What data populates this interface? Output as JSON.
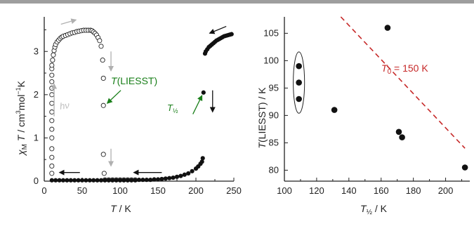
{
  "chart_data": [
    {
      "type": "scatter",
      "xlabel": {
        "main": "T",
        "unit": " / K"
      },
      "ylabel": {
        "base": "χ",
        "sub": "M",
        "mid": "T",
        "unit": " / cm",
        "sup1": "3",
        "unit2": "mol",
        "sup2": "−1",
        "unit3": "K"
      },
      "xlim": [
        0,
        250
      ],
      "ylim": [
        0,
        3.8
      ],
      "x_ticks": [
        0,
        50,
        100,
        150,
        200,
        250
      ],
      "y_ticks": [
        0,
        1,
        2,
        3
      ],
      "series": [
        {
          "marker": "filled-circle",
          "points": [
            [
              10,
              0.02
            ],
            [
              15,
              0.02
            ],
            [
              20,
              0.02
            ],
            [
              25,
              0.02
            ],
            [
              30,
              0.02
            ],
            [
              35,
              0.02
            ],
            [
              40,
              0.02
            ],
            [
              45,
              0.02
            ],
            [
              50,
              0.02
            ],
            [
              55,
              0.02
            ],
            [
              60,
              0.02
            ],
            [
              65,
              0.02
            ],
            [
              70,
              0.02
            ],
            [
              75,
              0.02
            ],
            [
              80,
              0.02
            ],
            [
              85,
              0.02
            ],
            [
              90,
              0.02
            ],
            [
              95,
              0.02
            ],
            [
              100,
              0.02
            ],
            [
              105,
              0.02
            ],
            [
              110,
              0.02
            ],
            [
              115,
              0.02
            ],
            [
              120,
              0.02
            ],
            [
              125,
              0.03
            ],
            [
              130,
              0.03
            ],
            [
              135,
              0.03
            ],
            [
              140,
              0.03
            ],
            [
              145,
              0.04
            ],
            [
              150,
              0.04
            ],
            [
              155,
              0.05
            ],
            [
              160,
              0.06
            ],
            [
              165,
              0.07
            ],
            [
              170,
              0.08
            ],
            [
              175,
              0.1
            ],
            [
              180,
              0.12
            ],
            [
              185,
              0.15
            ],
            [
              190,
              0.18
            ],
            [
              195,
              0.23
            ],
            [
              200,
              0.29
            ],
            [
              203,
              0.34
            ],
            [
              206,
              0.4
            ],
            [
              208,
              0.45
            ],
            [
              209,
              0.53
            ],
            [
              210,
              2.05
            ],
            [
              212,
              2.95
            ],
            [
              213,
              3.0
            ],
            [
              215,
              3.05
            ],
            [
              217,
              3.1
            ],
            [
              219,
              3.13
            ],
            [
              221,
              3.16
            ],
            [
              223,
              3.19
            ],
            [
              225,
              3.22
            ],
            [
              227,
              3.25
            ],
            [
              229,
              3.27
            ],
            [
              231,
              3.29
            ],
            [
              233,
              3.31
            ],
            [
              235,
              3.33
            ],
            [
              237,
              3.35
            ],
            [
              239,
              3.36
            ],
            [
              241,
              3.37
            ],
            [
              243,
              3.38
            ],
            [
              245,
              3.39
            ],
            [
              247,
              3.4
            ]
          ]
        },
        {
          "marker": "open-circle",
          "points": [
            [
              10,
              0.18
            ],
            [
              10,
              0.35
            ],
            [
              10,
              0.55
            ],
            [
              10,
              0.75
            ],
            [
              10,
              1.0
            ],
            [
              10,
              1.2
            ],
            [
              10,
              1.4
            ],
            [
              10,
              1.6
            ],
            [
              10,
              1.8
            ],
            [
              10,
              2.0
            ],
            [
              10,
              2.15
            ],
            [
              10,
              2.3
            ],
            [
              10,
              2.45
            ],
            [
              10,
              2.6
            ],
            [
              10,
              2.68
            ],
            [
              11,
              2.8
            ],
            [
              12,
              2.92
            ],
            [
              13,
              3.02
            ],
            [
              14,
              3.1
            ],
            [
              15,
              3.16
            ],
            [
              17,
              3.22
            ],
            [
              19,
              3.26
            ],
            [
              21,
              3.3
            ],
            [
              23,
              3.33
            ],
            [
              25,
              3.35
            ],
            [
              28,
              3.37
            ],
            [
              31,
              3.39
            ],
            [
              34,
              3.41
            ],
            [
              37,
              3.43
            ],
            [
              40,
              3.44
            ],
            [
              43,
              3.46
            ],
            [
              46,
              3.47
            ],
            [
              49,
              3.48
            ],
            [
              52,
              3.49
            ],
            [
              55,
              3.49
            ],
            [
              58,
              3.49
            ],
            [
              61,
              3.49
            ],
            [
              63,
              3.48
            ],
            [
              65,
              3.45
            ],
            [
              67,
              3.42
            ],
            [
              69,
              3.38
            ],
            [
              71,
              3.32
            ],
            [
              73,
              3.25
            ],
            [
              75,
              3.12
            ],
            [
              77,
              2.8
            ],
            [
              78,
              2.38
            ],
            [
              78,
              1.75
            ],
            [
              78,
              0.62
            ],
            [
              79,
              0.18
            ],
            [
              80,
              0.03
            ],
            [
              85,
              0.03
            ],
            [
              90,
              0.03
            ],
            [
              95,
              0.03
            ],
            [
              100,
              0.03
            ],
            [
              105,
              0.03
            ],
            [
              110,
              0.03
            ],
            [
              115,
              0.03
            ],
            [
              120,
              0.03
            ]
          ]
        }
      ],
      "annotations": {
        "liesst": {
          "label": "T",
          "label_suffix": "(LIESST)",
          "color": "#1a7f1a"
        },
        "thalf": {
          "label": "T",
          "label_sub": "½",
          "color": "#1a7f1a"
        },
        "hv": {
          "label": "hν",
          "color": "#bdbdbd"
        }
      },
      "arrow_colors": {
        "dark": "#111111",
        "light": "#b0b0b0"
      }
    },
    {
      "type": "scatter",
      "xlabel": {
        "main": "T",
        "sub": "½",
        "unit": " / K"
      },
      "ylabel": {
        "main": "T",
        "unit": "(LIESST) / K"
      },
      "xlim": [
        100,
        215
      ],
      "ylim": [
        78,
        108
      ],
      "x_ticks": [
        100,
        120,
        140,
        160,
        180,
        200
      ],
      "y_ticks": [
        80,
        85,
        90,
        95,
        100,
        105
      ],
      "points": [
        [
          109,
          99
        ],
        [
          109,
          96
        ],
        [
          109,
          93
        ],
        [
          131,
          91
        ],
        [
          164,
          106
        ],
        [
          171,
          87
        ],
        [
          173,
          86
        ],
        [
          212,
          80.5
        ]
      ],
      "ellipse_group": {
        "cx": 109,
        "cy": 96,
        "rx": 3.5,
        "ry": 5.6
      },
      "line": {
        "x": [
          135,
          212
        ],
        "y": [
          108,
          84
        ],
        "style": "dashed",
        "color": "#c62828"
      },
      "line_label": {
        "text_main": "T",
        "text_sub": "0",
        "text_rest": " = 150 K",
        "color": "#c62828"
      }
    }
  ]
}
